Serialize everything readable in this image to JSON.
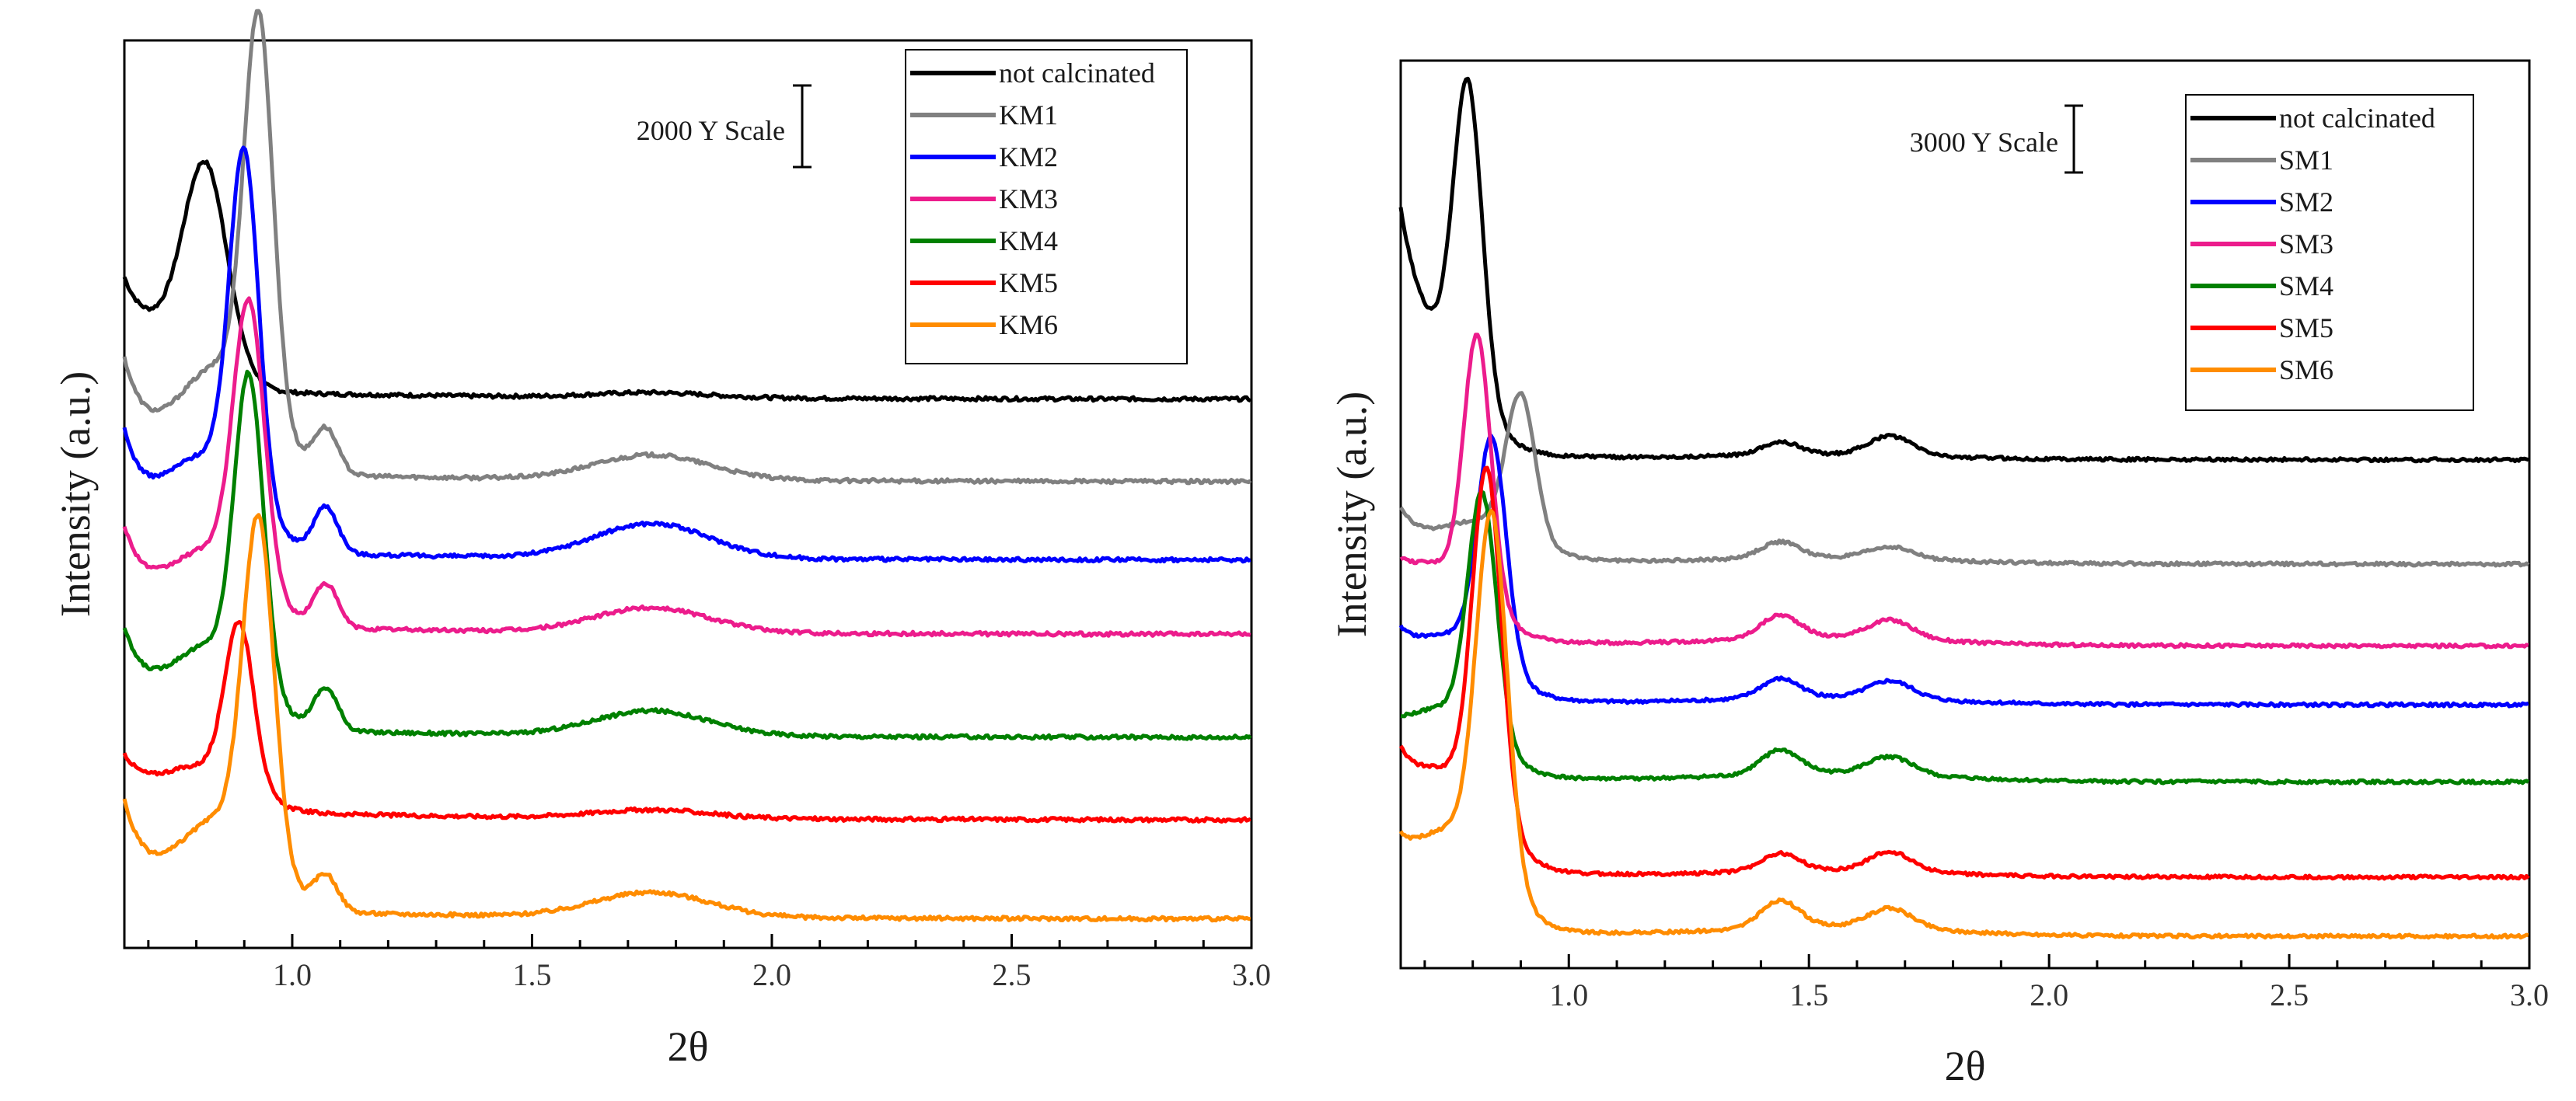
{
  "chart_data": [
    {
      "type": "line",
      "title": "",
      "xlabel": "2θ",
      "ylabel": "Intensity (a.u.)",
      "xlim": [
        0.65,
        3.0
      ],
      "ylim": [
        0,
        11000
      ],
      "xticks": [
        1.0,
        1.5,
        2.0,
        2.5,
        3.0
      ],
      "xtick_labels": [
        "1.0",
        "1.5",
        "2.0",
        "2.5",
        "3.0"
      ],
      "yticks_shown": false,
      "grid": false,
      "legend_position": "top-right",
      "scale_bar": {
        "label": "2000 Y Scale",
        "value": 2000
      },
      "series": [
        {
          "name": "not calcinated",
          "color": "#000000",
          "baseline": 6650,
          "peak_x": 0.82,
          "peak_amp": 2320,
          "peak_w": 0.045,
          "left_start": 1000,
          "shoulder_amp": 0,
          "broad_amp": 60
        },
        {
          "name": "KM1",
          "color": "#808080",
          "baseline": 5650,
          "peak_x": 0.93,
          "peak_amp": 4750,
          "peak_w": 0.03,
          "left_start": 1300,
          "shoulder_amp": 520,
          "broad_amp": 300
        },
        {
          "name": "KM2",
          "color": "#0000ff",
          "baseline": 4700,
          "peak_x": 0.9,
          "peak_amp": 4150,
          "peak_w": 0.03,
          "left_start": 1300,
          "shoulder_amp": 560,
          "broad_amp": 420
        },
        {
          "name": "KM3",
          "color": "#ec1c8c",
          "baseline": 3800,
          "peak_x": 0.91,
          "peak_amp": 3350,
          "peak_w": 0.032,
          "left_start": 1100,
          "shoulder_amp": 520,
          "broad_amp": 300
        },
        {
          "name": "KM4",
          "color": "#008000",
          "baseline": 2550,
          "peak_x": 0.91,
          "peak_amp": 3650,
          "peak_w": 0.03,
          "left_start": 1100,
          "shoulder_amp": 500,
          "broad_amp": 300
        },
        {
          "name": "KM5",
          "color": "#ff0000",
          "baseline": 1550,
          "peak_x": 0.89,
          "peak_amp": 1950,
          "peak_w": 0.03,
          "left_start": 600,
          "shoulder_amp": 0,
          "broad_amp": 100
        },
        {
          "name": "KM6",
          "color": "#ff8c00",
          "baseline": 350,
          "peak_x": 0.93,
          "peak_amp": 4050,
          "peak_w": 0.032,
          "left_start": 1250,
          "shoulder_amp": 420,
          "broad_amp": 300
        }
      ]
    },
    {
      "type": "line",
      "title": "",
      "xlabel": "2θ",
      "ylabel": "Intensity (a.u.)",
      "xlim": [
        0.65,
        3.0
      ],
      "ylim": [
        0,
        20000
      ],
      "xticks": [
        1.0,
        1.5,
        2.0,
        2.5,
        3.0
      ],
      "xtick_labels": [
        "1.0",
        "1.5",
        "2.0",
        "2.5",
        "3.0"
      ],
      "yticks_shown": false,
      "grid": false,
      "legend_position": "top-right",
      "scale_bar": {
        "label": "3000 Y Scale",
        "value": 3000
      },
      "series": [
        {
          "name": "not calcinated",
          "color": "#000000",
          "baseline": 11200,
          "peak_x": 0.79,
          "peak_amp": 6800,
          "peak_w": 0.03,
          "left_start": 4000,
          "peak2_amp": 280,
          "peak3_amp": 420
        },
        {
          "name": "SM1",
          "color": "#808080",
          "baseline": 8900,
          "peak_x": 0.9,
          "peak_amp": 3100,
          "peak_w": 0.03,
          "left_start": 1000,
          "peak2_amp": 350,
          "peak3_amp": 250
        },
        {
          "name": "SM2",
          "color": "#0000ff",
          "baseline": 5800,
          "peak_x": 0.84,
          "peak_amp": 4900,
          "peak_w": 0.03,
          "left_start": 1000,
          "peak2_amp": 420,
          "peak3_amp": 380
        },
        {
          "name": "SM3",
          "color": "#ec1c8c",
          "baseline": 7100,
          "peak_x": 0.81,
          "peak_amp": 5700,
          "peak_w": 0.028,
          "left_start": 800,
          "peak2_amp": 500,
          "peak3_amp": 400
        },
        {
          "name": "SM4",
          "color": "#008000",
          "baseline": 4100,
          "peak_x": 0.82,
          "peak_amp": 5300,
          "peak_w": 0.03,
          "left_start": 500,
          "peak2_amp": 520,
          "peak3_amp": 380
        },
        {
          "name": "SM5",
          "color": "#ff0000",
          "baseline": 2000,
          "peak_x": 0.83,
          "peak_amp": 7500,
          "peak_w": 0.03,
          "left_start": 1700,
          "peak2_amp": 380,
          "peak3_amp": 420
        },
        {
          "name": "SM6",
          "color": "#ff8c00",
          "baseline": 700,
          "peak_x": 0.84,
          "peak_amp": 7800,
          "peak_w": 0.032,
          "left_start": 1200,
          "peak2_amp": 580,
          "peak3_amp": 420
        }
      ]
    }
  ]
}
